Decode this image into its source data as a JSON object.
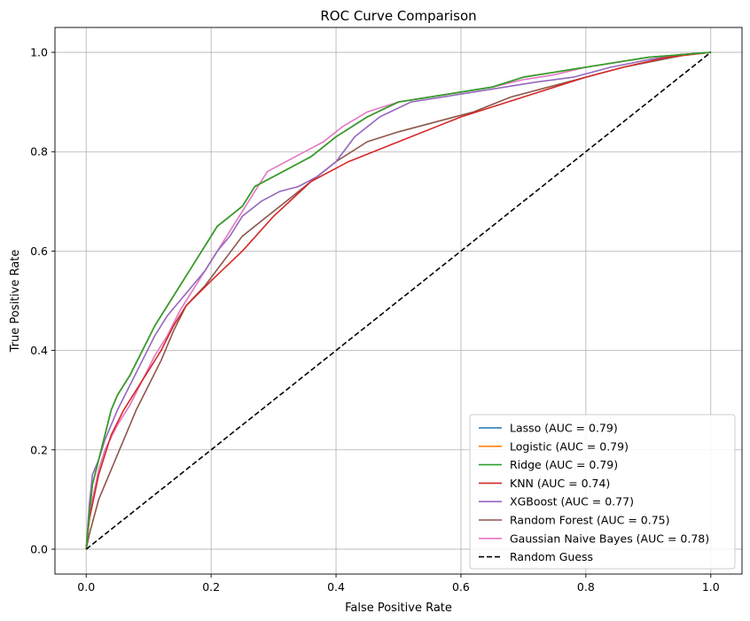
{
  "chart_data": {
    "type": "line",
    "title": "ROC Curve Comparison",
    "xlabel": "False Positive Rate",
    "ylabel": "True Positive Rate",
    "xlim": [
      -0.05,
      1.05
    ],
    "ylim": [
      -0.05,
      1.05
    ],
    "xticks": [
      "0.0",
      "0.2",
      "0.4",
      "0.6",
      "0.8",
      "1.0"
    ],
    "yticks": [
      "0.0",
      "0.2",
      "0.4",
      "0.6",
      "0.8",
      "1.0"
    ],
    "grid": true,
    "legend_position": "lower right",
    "series": [
      {
        "name": "Lasso (AUC = 0.79)",
        "color": "#1f77b4",
        "dash": false,
        "x": [
          0,
          0.005,
          0.01,
          0.02,
          0.03,
          0.04,
          0.05,
          0.07,
          0.09,
          0.11,
          0.13,
          0.15,
          0.17,
          0.19,
          0.21,
          0.23,
          0.25,
          0.27,
          0.3,
          0.33,
          0.36,
          0.4,
          0.45,
          0.5,
          0.55,
          0.6,
          0.65,
          0.7,
          0.75,
          0.8,
          0.85,
          0.9,
          0.95,
          1.0
        ],
        "y": [
          0,
          0.07,
          0.13,
          0.18,
          0.23,
          0.28,
          0.31,
          0.35,
          0.4,
          0.45,
          0.49,
          0.53,
          0.57,
          0.61,
          0.65,
          0.67,
          0.69,
          0.73,
          0.75,
          0.77,
          0.79,
          0.83,
          0.87,
          0.9,
          0.91,
          0.92,
          0.93,
          0.95,
          0.96,
          0.97,
          0.98,
          0.99,
          0.995,
          1.0
        ]
      },
      {
        "name": "Logistic (AUC = 0.79)",
        "color": "#ff7f0e",
        "dash": false,
        "x": [
          0,
          0.005,
          0.01,
          0.02,
          0.03,
          0.04,
          0.05,
          0.07,
          0.09,
          0.11,
          0.13,
          0.15,
          0.17,
          0.19,
          0.21,
          0.23,
          0.25,
          0.27,
          0.3,
          0.33,
          0.36,
          0.4,
          0.45,
          0.5,
          0.55,
          0.6,
          0.65,
          0.7,
          0.75,
          0.8,
          0.85,
          0.9,
          0.95,
          1.0
        ],
        "y": [
          0,
          0.07,
          0.13,
          0.18,
          0.23,
          0.28,
          0.31,
          0.35,
          0.4,
          0.45,
          0.49,
          0.53,
          0.57,
          0.61,
          0.65,
          0.67,
          0.69,
          0.73,
          0.75,
          0.77,
          0.79,
          0.83,
          0.87,
          0.9,
          0.91,
          0.92,
          0.93,
          0.95,
          0.96,
          0.97,
          0.98,
          0.99,
          0.995,
          1.0
        ]
      },
      {
        "name": "Ridge (AUC = 0.79)",
        "color": "#2ca02c",
        "dash": false,
        "x": [
          0,
          0.005,
          0.01,
          0.02,
          0.03,
          0.04,
          0.05,
          0.07,
          0.09,
          0.11,
          0.13,
          0.15,
          0.17,
          0.19,
          0.21,
          0.23,
          0.25,
          0.27,
          0.3,
          0.33,
          0.36,
          0.4,
          0.45,
          0.5,
          0.55,
          0.6,
          0.65,
          0.7,
          0.75,
          0.8,
          0.85,
          0.9,
          0.95,
          1.0
        ],
        "y": [
          0,
          0.07,
          0.13,
          0.18,
          0.23,
          0.28,
          0.31,
          0.35,
          0.4,
          0.45,
          0.49,
          0.53,
          0.57,
          0.61,
          0.65,
          0.67,
          0.69,
          0.73,
          0.75,
          0.77,
          0.79,
          0.83,
          0.87,
          0.9,
          0.91,
          0.92,
          0.93,
          0.95,
          0.96,
          0.97,
          0.98,
          0.99,
          0.995,
          1.0
        ]
      },
      {
        "name": "KNN (AUC = 0.74)",
        "color": "#d62728",
        "dash": false,
        "x": [
          0,
          0.005,
          0.02,
          0.04,
          0.06,
          0.08,
          0.1,
          0.12,
          0.14,
          0.16,
          0.2,
          0.25,
          0.3,
          0.36,
          0.42,
          0.5,
          0.6,
          0.7,
          0.8,
          0.86,
          0.93,
          1.0
        ],
        "y": [
          0,
          0.06,
          0.15,
          0.23,
          0.28,
          0.32,
          0.36,
          0.4,
          0.45,
          0.49,
          0.54,
          0.6,
          0.67,
          0.74,
          0.78,
          0.82,
          0.87,
          0.91,
          0.95,
          0.97,
          0.99,
          1.0
        ],
        "note": ""
      },
      {
        "name": "XGBoost (AUC = 0.77)",
        "color": "#9467bd",
        "dash": false,
        "x": [
          0,
          0.005,
          0.01,
          0.02,
          0.03,
          0.05,
          0.07,
          0.09,
          0.11,
          0.13,
          0.15,
          0.17,
          0.19,
          0.21,
          0.23,
          0.25,
          0.28,
          0.31,
          0.34,
          0.37,
          0.4,
          0.43,
          0.47,
          0.52,
          0.57,
          0.62,
          0.67,
          0.72,
          0.78,
          0.84,
          0.9,
          0.95,
          1.0
        ],
        "y": [
          0,
          0.09,
          0.15,
          0.18,
          0.22,
          0.28,
          0.33,
          0.38,
          0.43,
          0.47,
          0.5,
          0.53,
          0.56,
          0.6,
          0.63,
          0.67,
          0.7,
          0.72,
          0.73,
          0.75,
          0.78,
          0.83,
          0.87,
          0.9,
          0.91,
          0.92,
          0.93,
          0.94,
          0.95,
          0.97,
          0.985,
          0.995,
          1.0
        ]
      },
      {
        "name": "Random Forest (AUC = 0.75)",
        "color": "#8c564b",
        "dash": false,
        "x": [
          0,
          0.005,
          0.02,
          0.04,
          0.06,
          0.08,
          0.1,
          0.12,
          0.14,
          0.16,
          0.19,
          0.22,
          0.25,
          0.28,
          0.32,
          0.36,
          0.4,
          0.45,
          0.5,
          0.56,
          0.62,
          0.68,
          0.74,
          0.8,
          0.86,
          0.92,
          0.96,
          1.0
        ],
        "y": [
          0,
          0.03,
          0.1,
          0.16,
          0.22,
          0.28,
          0.33,
          0.38,
          0.44,
          0.49,
          0.53,
          0.58,
          0.63,
          0.66,
          0.7,
          0.74,
          0.78,
          0.82,
          0.84,
          0.86,
          0.88,
          0.91,
          0.93,
          0.95,
          0.97,
          0.985,
          0.995,
          1.0
        ]
      },
      {
        "name": "Gaussian Naive Bayes (AUC = 0.78)",
        "color": "#e377c2",
        "dash": false,
        "x": [
          0,
          0.005,
          0.01,
          0.02,
          0.03,
          0.05,
          0.07,
          0.09,
          0.11,
          0.13,
          0.15,
          0.17,
          0.19,
          0.21,
          0.23,
          0.25,
          0.27,
          0.29,
          0.32,
          0.35,
          0.38,
          0.41,
          0.45,
          0.5,
          0.55,
          0.6,
          0.65,
          0.7,
          0.75,
          0.8,
          0.85,
          0.9,
          0.95,
          1.0
        ],
        "y": [
          0,
          0.06,
          0.1,
          0.16,
          0.2,
          0.25,
          0.29,
          0.34,
          0.39,
          0.43,
          0.48,
          0.52,
          0.56,
          0.6,
          0.64,
          0.68,
          0.72,
          0.76,
          0.78,
          0.8,
          0.82,
          0.85,
          0.88,
          0.9,
          0.91,
          0.92,
          0.93,
          0.945,
          0.955,
          0.97,
          0.98,
          0.99,
          0.995,
          1.0
        ]
      },
      {
        "name": "Random Guess",
        "color": "#000000",
        "dash": true,
        "x": [
          0,
          1
        ],
        "y": [
          0,
          1
        ]
      }
    ]
  }
}
